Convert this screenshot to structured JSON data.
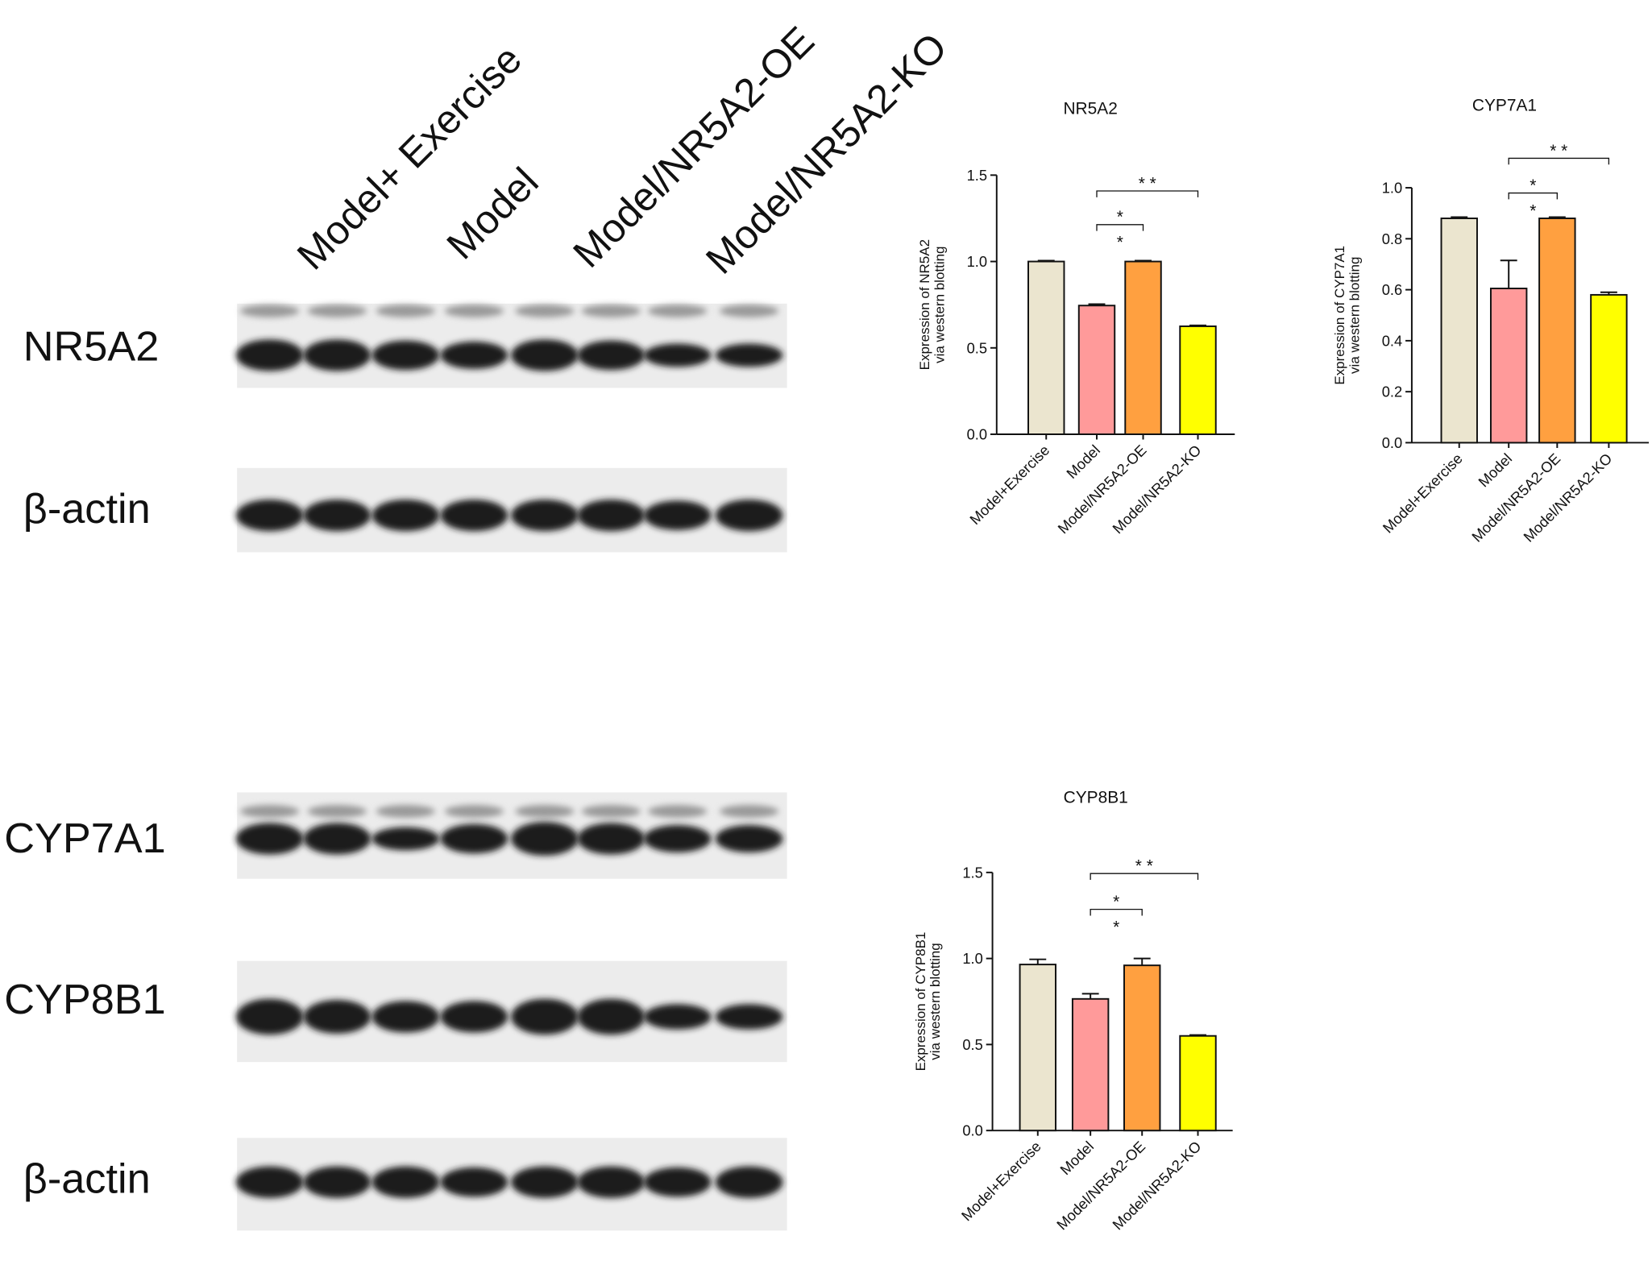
{
  "blots": {
    "lane_labels": [
      "Model+ Exercise",
      "Model",
      "Model/NR5A2-OE",
      "Model/NR5A2-KO"
    ],
    "rows": [
      "NR5A2",
      "β-actin",
      "CYP7A1",
      "CYP8B1",
      "β-actin"
    ]
  },
  "chart_data": [
    {
      "type": "bar",
      "title": "NR5A2",
      "ylabel": [
        "Expression of NR5A2",
        "via western blotting"
      ],
      "categories": [
        "Model+Exercise",
        "Model",
        "Model/NR5A2-OE",
        "Model/NR5A2-KO"
      ],
      "values": [
        1.0,
        0.745,
        1.0,
        0.625
      ],
      "errors": [
        0.005,
        0.008,
        0.005,
        0.005
      ],
      "colors": [
        "#ebe5cf",
        "#ff9a9a",
        "#ffa040",
        "#ffff00"
      ],
      "ylim": [
        0,
        1.5
      ],
      "yticks": [
        {
          "value": 0,
          "label": "0.0"
        },
        0.5,
        {
          "value": 1,
          "label": "1.0"
        },
        1.5
      ],
      "annotations": [
        "*",
        "*",
        "* *"
      ]
    },
    {
      "type": "bar",
      "title": "CYP7A1",
      "ylabel": [
        "Expression of CYP7A1",
        "via western blotting"
      ],
      "categories": [
        "Model+Exercise",
        "Model",
        "Model/NR5A2-OE",
        "Model/NR5A2-KO"
      ],
      "values": [
        0.88,
        0.605,
        0.88,
        0.58
      ],
      "errors": [
        0.005,
        0.11,
        0.005,
        0.01
      ],
      "colors": [
        "#ebe5cf",
        "#ff9a9a",
        "#ffa040",
        "#ffff00"
      ],
      "ylim": [
        0,
        1
      ],
      "yticks": [
        {
          "value": 0,
          "label": "0.0"
        },
        0.2,
        0.4,
        0.6,
        0.8,
        {
          "value": 1,
          "label": "1.0"
        }
      ],
      "annotations": [
        "*",
        "*",
        "* *"
      ]
    },
    {
      "type": "bar",
      "title": "CYP8B1",
      "ylabel": [
        "Expression of CYP8B1",
        "via western blotting"
      ],
      "categories": [
        "Model+Exercise",
        "Model",
        "Model/NR5A2-OE",
        "Model/NR5A2-KO"
      ],
      "values": [
        0.965,
        0.765,
        0.96,
        0.55
      ],
      "errors": [
        0.03,
        0.03,
        0.04,
        0.005
      ],
      "colors": [
        "#ebe5cf",
        "#ff9a9a",
        "#ffa040",
        "#ffff00"
      ],
      "ylim": [
        0,
        1.5
      ],
      "yticks": [
        {
          "value": 0,
          "label": "0.0"
        },
        0.5,
        {
          "value": 1,
          "label": "1.0"
        },
        1.5
      ],
      "annotations": [
        "*",
        "*",
        "* *"
      ]
    }
  ]
}
